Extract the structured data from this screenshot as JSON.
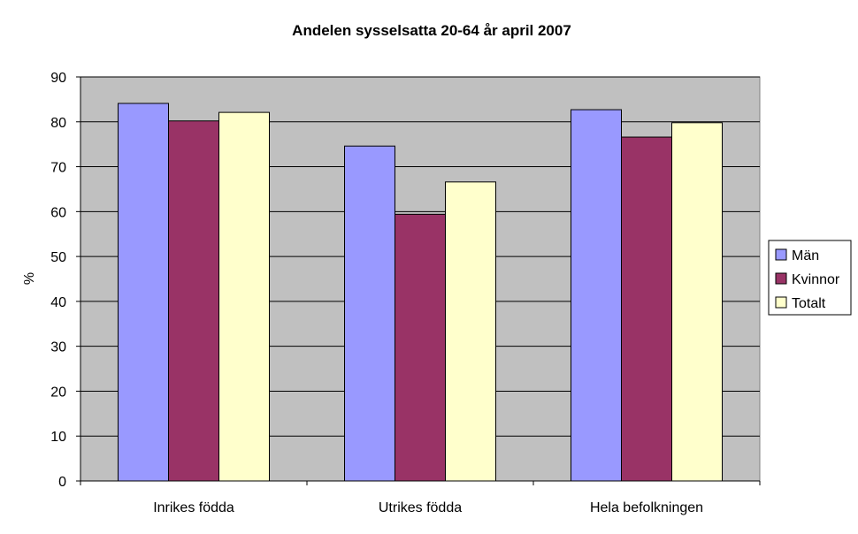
{
  "chart_data": {
    "type": "bar",
    "title": "Andelen sysselsatta 20-64 år april 2007",
    "xlabel": "",
    "ylabel": "%",
    "ylim": [
      0,
      90
    ],
    "yticks": [
      0,
      10,
      20,
      30,
      40,
      50,
      60,
      70,
      80,
      90
    ],
    "grid": true,
    "legend_position": "right",
    "categories": [
      "Inrikes födda",
      "Utrikes födda",
      "Hela befolkningen"
    ],
    "series": [
      {
        "name": "Män",
        "color": "#9999FF",
        "values": [
          84.1,
          74.6,
          82.7
        ]
      },
      {
        "name": "Kvinnor",
        "color": "#993366",
        "values": [
          80.2,
          59.4,
          76.6
        ]
      },
      {
        "name": "Totalt",
        "color": "#FFFFCC",
        "values": [
          82.1,
          66.6,
          79.8
        ]
      }
    ],
    "plot_background": "#C0C0C0"
  }
}
